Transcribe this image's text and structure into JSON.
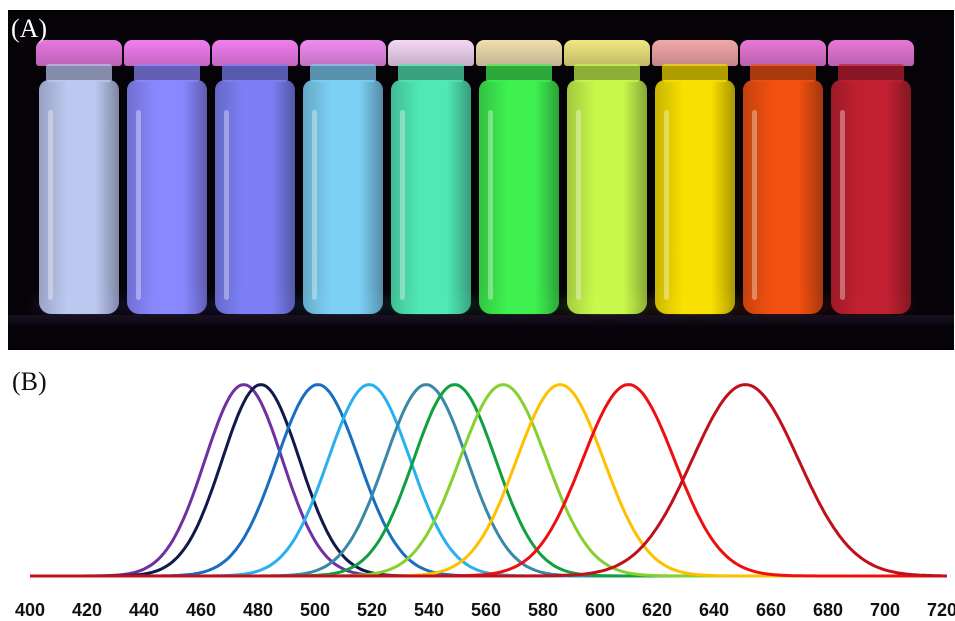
{
  "panel_a": {
    "label": "(A)",
    "vials": [
      {
        "cap": "#e878e0",
        "liquid": "#bcc8f0",
        "glow": "#8a7cff"
      },
      {
        "cap": "#f27ef0",
        "liquid": "#8a88ff",
        "glow": "#7060ff"
      },
      {
        "cap": "#f27ef0",
        "liquid": "#7c80f4",
        "glow": "#6a6cf0"
      },
      {
        "cap": "#f08cf0",
        "liquid": "#7cd0f4",
        "glow": "#60b8f0"
      },
      {
        "cap": "#f4d8f4",
        "liquid": "#50e8b4",
        "glow": "#40e8a8"
      },
      {
        "cap": "#f0e0b0",
        "liquid": "#3ef050",
        "glow": "#30e040"
      },
      {
        "cap": "#f0e880",
        "liquid": "#c8f84c",
        "glow": "#d8f040"
      },
      {
        "cap": "#f2a8a8",
        "liquid": "#f8e000",
        "glow": "#ffc800"
      },
      {
        "cap": "#e878d8",
        "liquid": "#f05010",
        "glow": "#ff4010"
      },
      {
        "cap": "#e878d8",
        "liquid": "#c02030",
        "glow": "#c01830"
      }
    ]
  },
  "panel_b": {
    "label": "(B)"
  },
  "chart_data": {
    "type": "line",
    "title": "",
    "xlabel": "",
    "ylabel": "",
    "xlim": [
      400,
      720
    ],
    "ylim": [
      0,
      1.05
    ],
    "x_ticks": [
      400,
      420,
      440,
      460,
      480,
      500,
      520,
      540,
      560,
      580,
      600,
      620,
      640,
      660,
      680,
      700,
      720
    ],
    "x_tick_labels": [
      "400",
      "420",
      "440",
      "460",
      "480",
      "500",
      "520",
      "540",
      "560",
      "580",
      "600",
      "620",
      "640",
      "660",
      "680",
      "700",
      "720"
    ],
    "grid": false,
    "legend": "none",
    "series": [
      {
        "color": "#7030a0",
        "peak": 475,
        "fwhm": 32,
        "height": 1.0
      },
      {
        "color": "#0f1a4a",
        "peak": 481,
        "fwhm": 32,
        "height": 1.0
      },
      {
        "color": "#1a6ec0",
        "peak": 501,
        "fwhm": 34,
        "height": 1.0
      },
      {
        "color": "#2ab0ee",
        "peak": 519,
        "fwhm": 34,
        "height": 1.0
      },
      {
        "color": "#3a88a8",
        "peak": 539,
        "fwhm": 34,
        "height": 1.0
      },
      {
        "color": "#10a040",
        "peak": 549,
        "fwhm": 34,
        "height": 1.0
      },
      {
        "color": "#86d030",
        "peak": 566,
        "fwhm": 36,
        "height": 1.0
      },
      {
        "color": "#ffc000",
        "peak": 586,
        "fwhm": 36,
        "height": 1.0
      },
      {
        "color": "#ee1010",
        "peak": 610,
        "fwhm": 38,
        "height": 1.0
      },
      {
        "color": "#c0101a",
        "peak": 651,
        "fwhm": 44,
        "height": 1.0
      }
    ]
  }
}
